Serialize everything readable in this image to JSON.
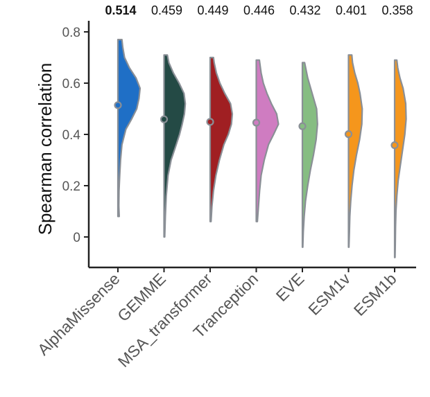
{
  "chart_data": {
    "type": "violin",
    "title": "",
    "xlabel": "",
    "ylabel": "Spearman correlation",
    "ylim": [
      -0.12,
      0.86
    ],
    "yticks": [
      0,
      0.2,
      0.4,
      0.6,
      0.8
    ],
    "ytick_labels": [
      "0",
      "0.2",
      "0.4",
      "0.6",
      "0.8"
    ],
    "series": [
      {
        "name": "AlphaMissense",
        "mean": 0.514,
        "label": "0.514",
        "bold": true,
        "min": 0.08,
        "max": 0.77,
        "color": "#1f6fc6",
        "density": [
          [
            0.08,
            0.06
          ],
          [
            0.12,
            0.04
          ],
          [
            0.18,
            0.05
          ],
          [
            0.24,
            0.08
          ],
          [
            0.3,
            0.12
          ],
          [
            0.36,
            0.18
          ],
          [
            0.42,
            0.36
          ],
          [
            0.46,
            0.62
          ],
          [
            0.5,
            0.85
          ],
          [
            0.54,
            0.95
          ],
          [
            0.58,
            1.0
          ],
          [
            0.62,
            0.82
          ],
          [
            0.66,
            0.52
          ],
          [
            0.7,
            0.3
          ],
          [
            0.74,
            0.22
          ],
          [
            0.77,
            0.18
          ]
        ]
      },
      {
        "name": "GEMME",
        "mean": 0.459,
        "label": "0.459",
        "bold": false,
        "min": 0.0,
        "max": 0.71,
        "color": "#244a45",
        "density": [
          [
            0.0,
            0.03
          ],
          [
            0.08,
            0.06
          ],
          [
            0.16,
            0.1
          ],
          [
            0.24,
            0.18
          ],
          [
            0.3,
            0.32
          ],
          [
            0.36,
            0.55
          ],
          [
            0.4,
            0.7
          ],
          [
            0.44,
            0.82
          ],
          [
            0.48,
            0.92
          ],
          [
            0.52,
            0.96
          ],
          [
            0.56,
            0.9
          ],
          [
            0.6,
            0.68
          ],
          [
            0.64,
            0.42
          ],
          [
            0.68,
            0.22
          ],
          [
            0.71,
            0.15
          ]
        ]
      },
      {
        "name": "MSA_transformer",
        "mean": 0.449,
        "label": "0.449",
        "bold": false,
        "min": 0.06,
        "max": 0.7,
        "color": "#a01f22",
        "density": [
          [
            0.06,
            0.04
          ],
          [
            0.12,
            0.08
          ],
          [
            0.18,
            0.15
          ],
          [
            0.24,
            0.26
          ],
          [
            0.3,
            0.42
          ],
          [
            0.36,
            0.62
          ],
          [
            0.4,
            0.82
          ],
          [
            0.44,
            0.96
          ],
          [
            0.48,
            1.0
          ],
          [
            0.52,
            0.92
          ],
          [
            0.56,
            0.66
          ],
          [
            0.6,
            0.44
          ],
          [
            0.64,
            0.28
          ],
          [
            0.68,
            0.18
          ],
          [
            0.7,
            0.15
          ]
        ]
      },
      {
        "name": "Tranception",
        "mean": 0.446,
        "label": "0.446",
        "bold": false,
        "min": 0.06,
        "max": 0.69,
        "color": "#cf7cc1",
        "density": [
          [
            0.06,
            0.05
          ],
          [
            0.12,
            0.1
          ],
          [
            0.18,
            0.15
          ],
          [
            0.24,
            0.22
          ],
          [
            0.3,
            0.36
          ],
          [
            0.36,
            0.55
          ],
          [
            0.4,
            0.78
          ],
          [
            0.44,
            1.0
          ],
          [
            0.48,
            0.92
          ],
          [
            0.52,
            0.68
          ],
          [
            0.56,
            0.48
          ],
          [
            0.6,
            0.32
          ],
          [
            0.64,
            0.22
          ],
          [
            0.69,
            0.14
          ]
        ]
      },
      {
        "name": "EVE",
        "mean": 0.432,
        "label": "0.432",
        "bold": false,
        "min": -0.04,
        "max": 0.68,
        "color": "#86bd82",
        "density": [
          [
            -0.04,
            0.02
          ],
          [
            0.02,
            0.04
          ],
          [
            0.08,
            0.08
          ],
          [
            0.14,
            0.14
          ],
          [
            0.2,
            0.24
          ],
          [
            0.26,
            0.36
          ],
          [
            0.32,
            0.5
          ],
          [
            0.38,
            0.62
          ],
          [
            0.44,
            0.68
          ],
          [
            0.5,
            0.64
          ],
          [
            0.56,
            0.44
          ],
          [
            0.62,
            0.24
          ],
          [
            0.68,
            0.1
          ]
        ]
      },
      {
        "name": "ESM1v",
        "mean": 0.401,
        "label": "0.401",
        "bold": false,
        "min": -0.04,
        "max": 0.71,
        "color": "#f5961c",
        "density": [
          [
            -0.04,
            0.02
          ],
          [
            0.02,
            0.04
          ],
          [
            0.08,
            0.06
          ],
          [
            0.14,
            0.1
          ],
          [
            0.2,
            0.16
          ],
          [
            0.26,
            0.24
          ],
          [
            0.32,
            0.36
          ],
          [
            0.38,
            0.5
          ],
          [
            0.44,
            0.6
          ],
          [
            0.5,
            0.62
          ],
          [
            0.56,
            0.52
          ],
          [
            0.6,
            0.42
          ],
          [
            0.64,
            0.28
          ],
          [
            0.68,
            0.18
          ],
          [
            0.71,
            0.15
          ]
        ]
      },
      {
        "name": "ESM1b",
        "mean": 0.358,
        "label": "0.358",
        "bold": false,
        "min": -0.08,
        "max": 0.69,
        "color": "#f5961c",
        "density": [
          [
            -0.08,
            0.02
          ],
          [
            -0.02,
            0.03
          ],
          [
            0.04,
            0.04
          ],
          [
            0.1,
            0.06
          ],
          [
            0.16,
            0.1
          ],
          [
            0.22,
            0.16
          ],
          [
            0.28,
            0.26
          ],
          [
            0.34,
            0.36
          ],
          [
            0.4,
            0.46
          ],
          [
            0.46,
            0.52
          ],
          [
            0.52,
            0.5
          ],
          [
            0.58,
            0.38
          ],
          [
            0.62,
            0.24
          ],
          [
            0.66,
            0.14
          ],
          [
            0.69,
            0.1
          ]
        ]
      }
    ]
  }
}
